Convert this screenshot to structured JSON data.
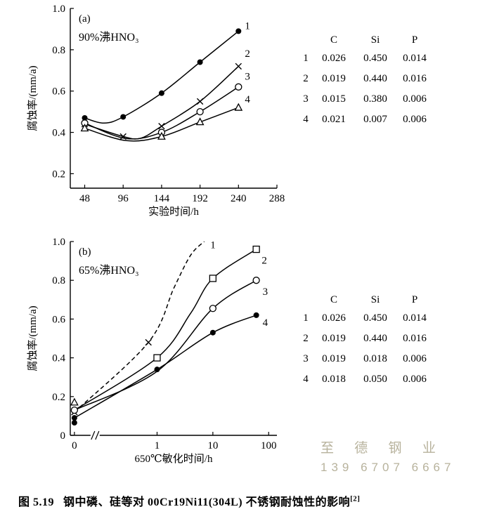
{
  "figure": {
    "caption_label": "图 5.19",
    "caption_text": "钢中磷、硅等对 00Cr19Ni11(304L) 不锈钢耐蚀性的影响",
    "caption_ref": "[2]"
  },
  "watermark": {
    "line1": "至 德 钢 业",
    "line2": "139 6707 6667",
    "color": "#b7b29c"
  },
  "chart_data": [
    {
      "type": "line",
      "panel_label": "(a)",
      "title": "90%沸HNO₃",
      "xlabel": "实验时间/h",
      "ylabel": "腐蚀率/(mm/a)",
      "xscale": "linear",
      "xlim": [
        30,
        288
      ],
      "ylim": [
        0.13,
        1.0
      ],
      "xticks": [
        48,
        96,
        144,
        192,
        240,
        288
      ],
      "xtick_labels": [
        "48",
        "96",
        "144",
        "192",
        "240",
        "288"
      ],
      "yticks": [
        0.2,
        0.4,
        0.6,
        0.8,
        1.0
      ],
      "ytick_labels": [
        "0.2",
        "0.4",
        "0.6",
        "0.8",
        "1.0"
      ],
      "grid": false,
      "legend_position": "inline-labels",
      "series": [
        {
          "name": "1",
          "marker": "filled-circle",
          "dashed": false,
          "points": [
            [
              48,
              0.47
            ],
            [
              72,
              0.445
            ],
            [
              96,
              0.475
            ],
            [
              144,
              0.59
            ],
            [
              192,
              0.74
            ],
            [
              240,
              0.89
            ]
          ],
          "markers": [
            [
              48,
              0.47
            ],
            [
              96,
              0.475
            ],
            [
              144,
              0.59
            ],
            [
              192,
              0.74
            ],
            [
              240,
              0.89
            ]
          ],
          "label_x": 248,
          "label_y": 0.9
        },
        {
          "name": "2",
          "marker": "x",
          "dashed": false,
          "points": [
            [
              48,
              0.44
            ],
            [
              96,
              0.38
            ],
            [
              118,
              0.372
            ],
            [
              144,
              0.43
            ],
            [
              192,
              0.55
            ],
            [
              240,
              0.72
            ]
          ],
          "markers": [
            [
              48,
              0.44
            ],
            [
              96,
              0.38
            ],
            [
              144,
              0.43
            ],
            [
              192,
              0.55
            ],
            [
              240,
              0.72
            ]
          ],
          "label_x": 248,
          "label_y": 0.765
        },
        {
          "name": "3",
          "marker": "open-circle",
          "dashed": false,
          "points": [
            [
              48,
              0.445
            ],
            [
              100,
              0.37
            ],
            [
              144,
              0.4
            ],
            [
              192,
              0.5
            ],
            [
              240,
              0.62
            ]
          ],
          "markers": [
            [
              48,
              0.445
            ],
            [
              144,
              0.4
            ],
            [
              192,
              0.5
            ],
            [
              240,
              0.62
            ]
          ],
          "label_x": 248,
          "label_y": 0.655
        },
        {
          "name": "4",
          "marker": "open-triangle",
          "dashed": false,
          "points": [
            [
              48,
              0.42
            ],
            [
              100,
              0.36
            ],
            [
              144,
              0.38
            ],
            [
              192,
              0.45
            ],
            [
              240,
              0.52
            ]
          ],
          "markers": [
            [
              48,
              0.42
            ],
            [
              144,
              0.38
            ],
            [
              192,
              0.45
            ],
            [
              240,
              0.52
            ]
          ],
          "label_x": 248,
          "label_y": 0.545
        }
      ],
      "table": {
        "headers": [
          "C",
          "Si",
          "P"
        ],
        "rows": [
          [
            "1",
            "0.026",
            "0.450",
            "0.014"
          ],
          [
            "2",
            "0.019",
            "0.440",
            "0.016"
          ],
          [
            "3",
            "0.015",
            "0.380",
            "0.006"
          ],
          [
            "4",
            "0.021",
            "0.007",
            "0.006"
          ]
        ]
      }
    },
    {
      "type": "line",
      "panel_label": "(b)",
      "title": "65%沸HNO₃",
      "xlabel": "650℃敏化时间/h",
      "ylabel": "腐蚀率/(mm/a)",
      "xscale": "log-break",
      "x_break": true,
      "ylim": [
        0,
        1.0
      ],
      "xticks": [
        0,
        1,
        10,
        100
      ],
      "xtick_labels": [
        "0",
        "1",
        "10",
        "100"
      ],
      "yticks": [
        0,
        0.2,
        0.4,
        0.6,
        0.8,
        1.0
      ],
      "ytick_labels": [
        "0",
        "0.2",
        "0.4",
        "0.6",
        "0.8",
        "1.0"
      ],
      "grid": false,
      "legend_position": "inline-labels",
      "series": [
        {
          "name": "1",
          "marker": "x",
          "dashed": true,
          "points": [
            [
              0,
              0.12
            ],
            [
              0.7,
              0.48
            ],
            [
              2,
              0.76
            ],
            [
              4,
              0.93
            ],
            [
              7,
              1.0
            ]
          ],
          "markers": [
            [
              0,
              0.12
            ],
            [
              0.7,
              0.48
            ]
          ],
          "label_x": 9,
          "label_y": 0.965
        },
        {
          "name": "2",
          "marker": "open-square",
          "dashed": false,
          "points": [
            [
              0,
              0.13
            ],
            [
              1,
              0.4
            ],
            [
              4,
              0.63
            ],
            [
              10,
              0.81
            ],
            [
              60,
              0.96
            ]
          ],
          "markers": [
            [
              1,
              0.4
            ],
            [
              10,
              0.81
            ],
            [
              60,
              0.96
            ]
          ],
          "label_x": 75,
          "label_y": 0.885
        },
        {
          "name": "3",
          "marker": "open-circle",
          "dashed": false,
          "points": [
            [
              0,
              0.13
            ],
            [
              1,
              0.33
            ],
            [
              10,
              0.655
            ],
            [
              60,
              0.8
            ]
          ],
          "markers": [
            [
              0,
              0.13
            ],
            [
              10,
              0.655
            ],
            [
              60,
              0.8
            ]
          ],
          "label_x": 78,
          "label_y": 0.725
        },
        {
          "name": "4",
          "marker": "filled-circle",
          "dashed": false,
          "points": [
            [
              0,
              0.09
            ],
            [
              1,
              0.34
            ],
            [
              10,
              0.53
            ],
            [
              60,
              0.62
            ]
          ],
          "markers": [
            [
              0,
              0.09
            ],
            [
              1,
              0.34
            ],
            [
              10,
              0.53
            ],
            [
              60,
              0.62
            ]
          ],
          "label_x": 78,
          "label_y": 0.565
        }
      ],
      "extra_markers": [
        {
          "marker": "open-triangle",
          "x": 0,
          "y": 0.17
        },
        {
          "marker": "filled-circle",
          "x": 0,
          "y": 0.065
        }
      ],
      "table": {
        "headers": [
          "C",
          "Si",
          "P"
        ],
        "rows": [
          [
            "1",
            "0.026",
            "0.450",
            "0.014"
          ],
          [
            "2",
            "0.019",
            "0.440",
            "0.016"
          ],
          [
            "3",
            "0.019",
            "0.018",
            "0.006"
          ],
          [
            "4",
            "0.018",
            "0.050",
            "0.006"
          ]
        ]
      }
    }
  ]
}
